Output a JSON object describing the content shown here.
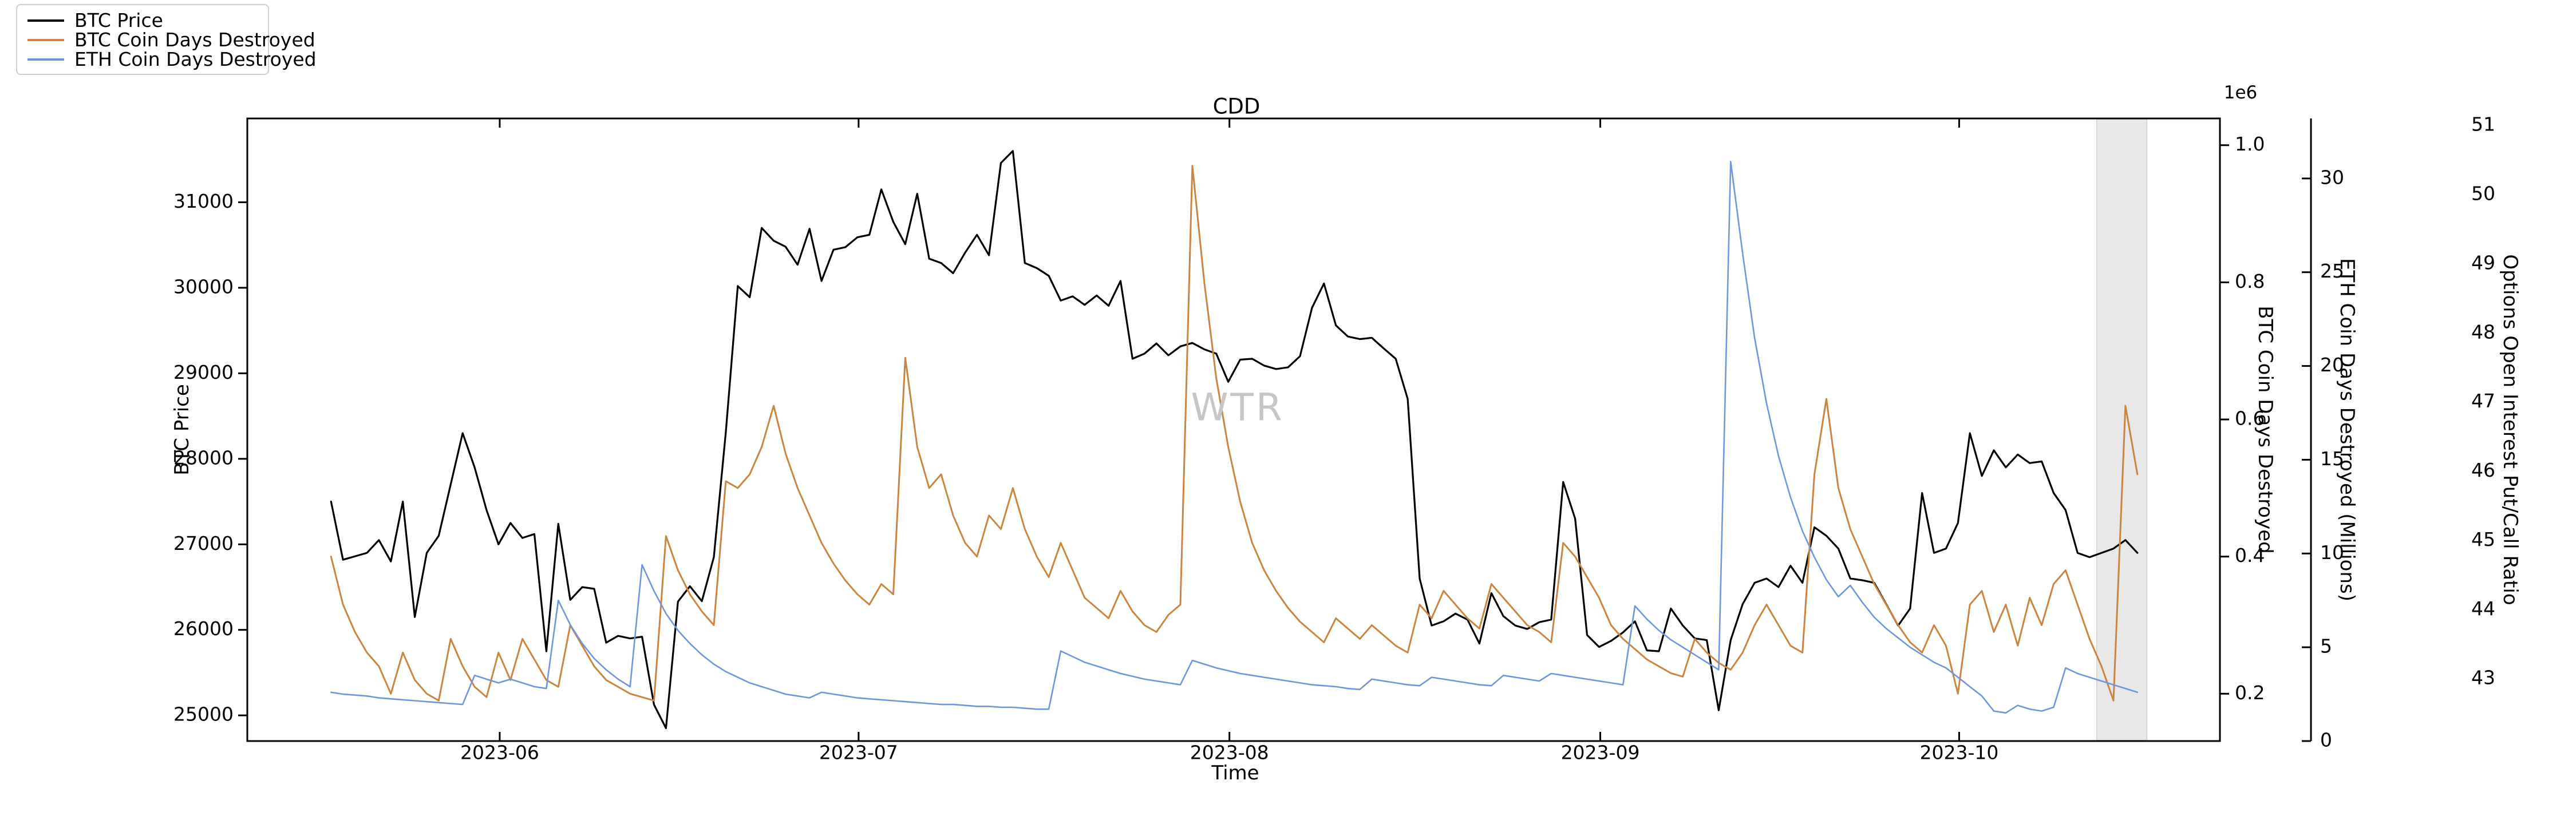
{
  "title": "CDD",
  "watermark": "WTR",
  "legend": {
    "items": [
      {
        "label": "BTC Price",
        "color": "#000000"
      },
      {
        "label": "BTC Coin Days Destroyed",
        "color": "#CC8540"
      },
      {
        "label": "ETH Coin Days Destroyed",
        "color": "#6F96DD"
      }
    ]
  },
  "axes": {
    "x": {
      "label": "Time",
      "ticks": [
        {
          "label": "2023-06",
          "day": 21.1
        },
        {
          "label": "2023-07",
          "day": 51.1
        },
        {
          "label": "2023-08",
          "day": 82.1
        },
        {
          "label": "2023-09",
          "day": 113.1
        },
        {
          "label": "2023-10",
          "day": 143.1
        }
      ],
      "domain_days": [
        0,
        164.9
      ],
      "start_date_of_domain": "2023-05-11"
    },
    "y_price": {
      "label": "BTC Price",
      "ticks": [
        25000,
        26000,
        27000,
        28000,
        29000,
        30000,
        31000
      ],
      "range": [
        24700,
        31980
      ]
    },
    "y_btc_cdd": {
      "label": "BTC Coin Days Destroyed",
      "offset_text": "1e6",
      "ticks": [
        0.2,
        0.4,
        0.6,
        0.8,
        1.0
      ],
      "range": [
        0.131,
        1.039
      ]
    },
    "y_eth_cdd": {
      "label": "ETH Coin Days Destroyed (Millions)",
      "ticks": [
        0,
        5,
        10,
        15,
        20,
        25,
        30
      ],
      "range": [
        0,
        33.2
      ]
    },
    "y_putcall": {
      "label": "Options Open Interest Put/Call Ratio",
      "ticks": [
        43,
        44,
        45,
        46,
        47,
        48,
        49,
        50,
        51
      ],
      "range": [
        42.1,
        51.1
      ]
    }
  },
  "chart_data": {
    "type": "line",
    "title": "CDD",
    "x_start_day": 7,
    "x_step_days": 1,
    "start_date": "2023-05-18",
    "end_date": "2023-10-16",
    "highlight_band": {
      "from_day": 154.6,
      "to_day": 158.8,
      "color": "#d9d9d9",
      "opacity": 0.6
    },
    "series": [
      {
        "name": "BTC Price",
        "axis": "y_price",
        "color": "#000000",
        "width": 3.2,
        "values": [
          27500,
          26820,
          26860,
          26900,
          27050,
          26800,
          27500,
          26150,
          26900,
          27100,
          27700,
          28300,
          27900,
          27400,
          27000,
          27250,
          27075,
          27120,
          25750,
          27240,
          26350,
          26500,
          26480,
          25850,
          25930,
          25900,
          25920,
          25125,
          24850,
          26330,
          26510,
          26335,
          26850,
          28310,
          30020,
          29890,
          30700,
          30550,
          30480,
          30270,
          30690,
          30080,
          30445,
          30475,
          30590,
          30620,
          31150,
          30770,
          30510,
          31100,
          30340,
          30290,
          30170,
          30410,
          30620,
          30380,
          31460,
          31600,
          30290,
          30230,
          30140,
          29850,
          29900,
          29800,
          29910,
          29790,
          30080,
          29170,
          29230,
          29350,
          29210,
          29315,
          29355,
          29280,
          29230,
          28900,
          29160,
          29170,
          29090,
          29050,
          29070,
          29200,
          29765,
          30050,
          29560,
          29430,
          29400,
          29415,
          29290,
          29170,
          28700,
          26600,
          26050,
          26100,
          26190,
          26120,
          25840,
          26430,
          26160,
          26050,
          26010,
          26090,
          26120,
          27730,
          27300,
          25940,
          25800,
          25870,
          25970,
          26100,
          25760,
          25750,
          26250,
          26050,
          25900,
          25880,
          25060,
          25880,
          26300,
          26550,
          26600,
          26500,
          26750,
          26550,
          27200,
          27100,
          26950,
          26600,
          26580,
          26550,
          26300,
          26050,
          26250,
          27600,
          26900,
          26950,
          27250,
          28300,
          27800,
          28100,
          27900,
          28050,
          27950,
          27970,
          27600,
          27400,
          26900,
          26850,
          26900,
          26950,
          27050,
          26900
        ]
      },
      {
        "name": "BTC Coin Days Destroyed",
        "axis": "y_btc_cdd",
        "color": "#CC8540",
        "width": 3.0,
        "values": [
          0.4,
          0.33,
          0.29,
          0.26,
          0.24,
          0.2,
          0.26,
          0.22,
          0.2,
          0.19,
          0.28,
          0.24,
          0.21,
          0.195,
          0.26,
          0.22,
          0.28,
          0.25,
          0.22,
          0.21,
          0.3,
          0.27,
          0.24,
          0.22,
          0.21,
          0.2,
          0.195,
          0.19,
          0.43,
          0.38,
          0.345,
          0.32,
          0.3,
          0.51,
          0.5,
          0.52,
          0.56,
          0.62,
          0.55,
          0.5,
          0.46,
          0.42,
          0.39,
          0.365,
          0.345,
          0.33,
          0.36,
          0.345,
          0.69,
          0.56,
          0.5,
          0.52,
          0.46,
          0.42,
          0.4,
          0.46,
          0.44,
          0.5,
          0.44,
          0.4,
          0.37,
          0.42,
          0.38,
          0.34,
          0.325,
          0.31,
          0.35,
          0.32,
          0.3,
          0.29,
          0.315,
          0.33,
          0.97,
          0.8,
          0.66,
          0.56,
          0.48,
          0.42,
          0.38,
          0.35,
          0.325,
          0.305,
          0.29,
          0.275,
          0.31,
          0.295,
          0.28,
          0.3,
          0.285,
          0.27,
          0.26,
          0.33,
          0.31,
          0.35,
          0.33,
          0.31,
          0.295,
          0.36,
          0.34,
          0.32,
          0.3,
          0.29,
          0.275,
          0.42,
          0.4,
          0.37,
          0.34,
          0.3,
          0.28,
          0.265,
          0.25,
          0.24,
          0.23,
          0.225,
          0.28,
          0.26,
          0.245,
          0.235,
          0.26,
          0.3,
          0.33,
          0.3,
          0.27,
          0.26,
          0.52,
          0.63,
          0.5,
          0.44,
          0.4,
          0.36,
          0.33,
          0.3,
          0.275,
          0.26,
          0.3,
          0.27,
          0.2,
          0.33,
          0.35,
          0.29,
          0.33,
          0.27,
          0.34,
          0.3,
          0.36,
          0.38,
          0.33,
          0.28,
          0.24,
          0.19,
          0.62,
          0.52
        ]
      },
      {
        "name": "ETH Coin Days Destroyed",
        "axis": "y_eth_cdd",
        "color": "#6F96DD",
        "width": 2.6,
        "values": [
          2.6,
          2.5,
          2.45,
          2.4,
          2.3,
          2.25,
          2.2,
          2.15,
          2.1,
          2.05,
          2.0,
          1.95,
          3.5,
          3.3,
          3.1,
          3.3,
          3.1,
          2.9,
          2.8,
          7.5,
          6.2,
          5.2,
          4.4,
          3.8,
          3.3,
          2.9,
          9.4,
          8.0,
          6.8,
          5.9,
          5.2,
          4.6,
          4.1,
          3.7,
          3.4,
          3.1,
          2.9,
          2.7,
          2.5,
          2.4,
          2.3,
          2.6,
          2.5,
          2.4,
          2.3,
          2.25,
          2.2,
          2.15,
          2.1,
          2.05,
          2.0,
          1.95,
          1.95,
          1.9,
          1.85,
          1.85,
          1.8,
          1.8,
          1.75,
          1.7,
          1.7,
          4.8,
          4.5,
          4.2,
          4.0,
          3.8,
          3.6,
          3.45,
          3.3,
          3.2,
          3.1,
          3.0,
          4.3,
          4.1,
          3.9,
          3.75,
          3.6,
          3.5,
          3.4,
          3.3,
          3.2,
          3.1,
          3.0,
          2.95,
          2.9,
          2.8,
          2.75,
          3.3,
          3.2,
          3.1,
          3.0,
          2.95,
          3.4,
          3.3,
          3.2,
          3.1,
          3.0,
          2.95,
          3.5,
          3.4,
          3.3,
          3.2,
          3.6,
          3.5,
          3.4,
          3.3,
          3.2,
          3.1,
          3.0,
          7.2,
          6.5,
          5.9,
          5.4,
          5.0,
          4.6,
          4.2,
          3.8,
          30.9,
          26.0,
          21.5,
          18.0,
          15.2,
          13.0,
          11.2,
          9.8,
          8.6,
          7.7,
          8.3,
          7.4,
          6.6,
          6.0,
          5.5,
          5.0,
          4.6,
          4.2,
          3.9,
          3.4,
          2.9,
          2.4,
          1.6,
          1.5,
          1.9,
          1.7,
          1.6,
          1.8,
          3.9,
          3.6,
          3.4,
          3.2,
          3.0,
          2.8,
          2.6
        ]
      }
    ]
  }
}
